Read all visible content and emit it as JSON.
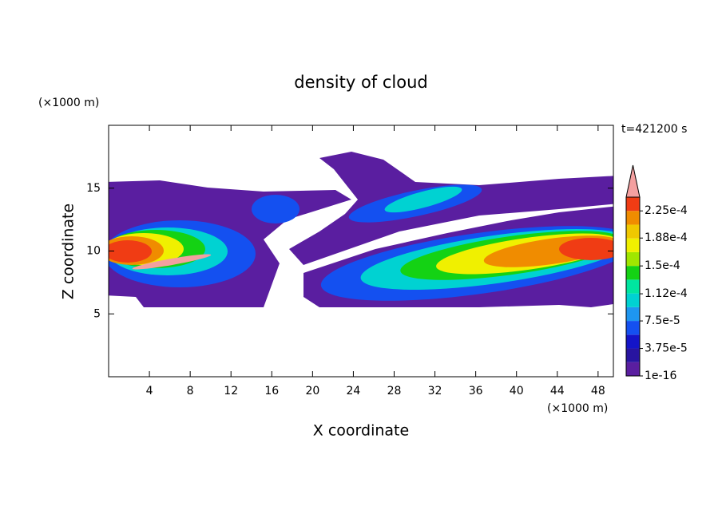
{
  "chart_data": {
    "type": "contour",
    "title": "density of cloud",
    "x_label": "X coordinate",
    "y_label": "Z coordinate",
    "x_unit": "(×1000 m)",
    "y_unit": "(×1000 m)",
    "annotation": "t=421200 s",
    "xlim": [
      0,
      49.5
    ],
    "xticks": [
      4,
      8,
      12,
      16,
      20,
      24,
      28,
      32,
      36,
      40,
      44,
      48
    ],
    "ylim": [
      0,
      20
    ],
    "yticks": [
      5,
      10,
      15
    ],
    "colorbar": {
      "clim": [
        1e-16,
        0.00024375
      ],
      "ticks": [
        1e-16,
        {
          "value": 3.75e-05,
          "label": "3.75e-5"
        },
        {
          "value": 7.5e-05,
          "label": "7.5e-5"
        },
        {
          "value": 0.000112,
          "label": "1.12e-4"
        },
        {
          "value": 0.00015,
          "label": "1.5e-4"
        },
        {
          "value": 0.000188,
          "label": "1.88e-4"
        },
        {
          "value": 0.000225,
          "label": "2.25e-4"
        }
      ],
      "colors": [
        "#5a1ea0",
        "#2814a0",
        "#1414c8",
        "#1450f0",
        "#1e96f0",
        "#00d2d2",
        "#00e6a0",
        "#14d214",
        "#a0e600",
        "#f0f000",
        "#f0c800",
        "#f08c00",
        "#f03c14"
      ],
      "over_color": "#f4a0a0"
    }
  }
}
